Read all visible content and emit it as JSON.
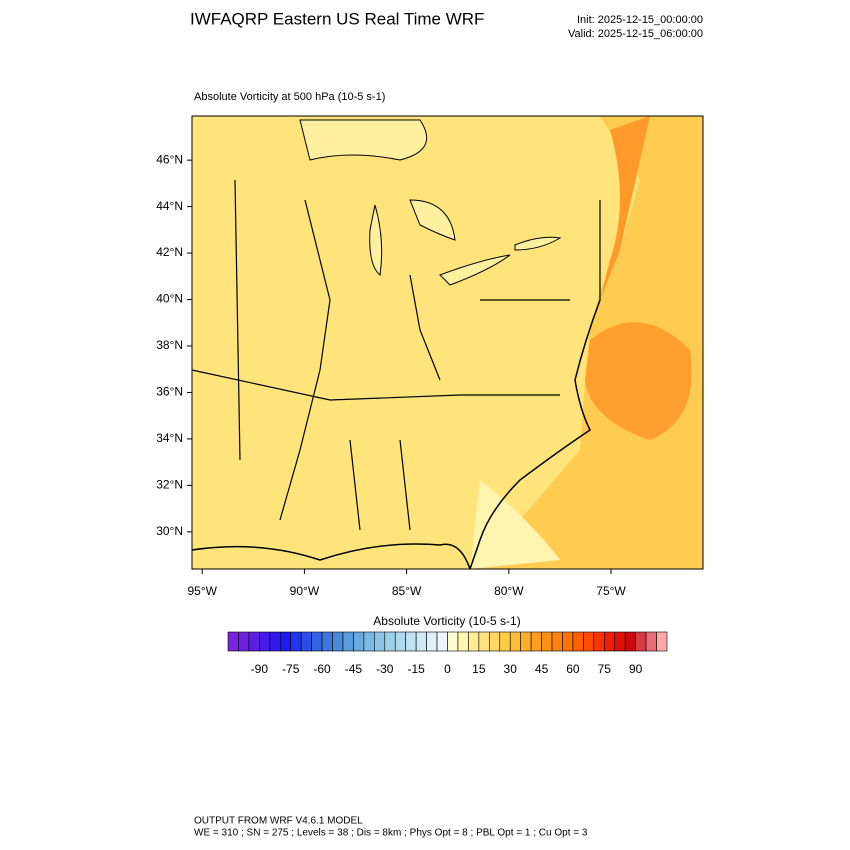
{
  "title": "IWFAQRP Eastern US Real Time WRF",
  "init": "Init: 2025-12-15_00:00:00",
  "valid": "Valid: 2025-12-15_06:00:00",
  "subtitle": "Absolute Vorticity at 500 hPa   (10-5 s-1)",
  "map": {
    "latlim": [
      28.4,
      47.9
    ],
    "lonlim": [
      -95.5,
      -70.5
    ],
    "latticks": [
      {
        "value": 46,
        "label": "46°N"
      },
      {
        "value": 44,
        "label": "44°N"
      },
      {
        "value": 42,
        "label": "42°N"
      },
      {
        "value": 40,
        "label": "40°N"
      },
      {
        "value": 38,
        "label": "38°N"
      },
      {
        "value": 36,
        "label": "36°N"
      },
      {
        "value": 34,
        "label": "34°N"
      },
      {
        "value": 32,
        "label": "32°N"
      },
      {
        "value": 30,
        "label": "30°N"
      }
    ],
    "lonticks": [
      {
        "value": -95,
        "label": "95°W"
      },
      {
        "value": -90,
        "label": "90°W"
      },
      {
        "value": -85,
        "label": "85°W"
      },
      {
        "value": -80,
        "label": "80°W"
      },
      {
        "value": -75,
        "label": "75°W"
      }
    ]
  },
  "colorbar": {
    "title": "Absolute Vorticity  (10-5 s-1)",
    "range": [
      -105,
      105
    ],
    "colors": [
      "#7b22dd",
      "#6b20e0",
      "#5a1ee4",
      "#471ce8",
      "#2f1aec",
      "#1c1cf0",
      "#2236ee",
      "#2b4ee8",
      "#3564e2",
      "#3f78dc",
      "#4a8ad8",
      "#5a9cdc",
      "#6aacdf",
      "#7bbae3",
      "#8cc6e7",
      "#9dd0ea",
      "#afd9ee",
      "#bfe1f1",
      "#cfe9f5",
      "#dff0f8",
      "#eef6fb",
      "#fffbd0",
      "#fff4b0",
      "#ffec94",
      "#ffe37a",
      "#ffd860",
      "#ffcb48",
      "#ffbd36",
      "#ffae28",
      "#ffa01c",
      "#ff9112",
      "#ff820c",
      "#ff7208",
      "#ff6006",
      "#ff4c04",
      "#ff3402",
      "#f01e02",
      "#dc1008",
      "#c80a10",
      "#d83a44",
      "#ec6c74",
      "#ffa8a8"
    ],
    "ticks": [
      -90,
      -75,
      -60,
      -45,
      -30,
      -15,
      0,
      15,
      30,
      45,
      60,
      75,
      90
    ]
  },
  "footer": [
    "OUTPUT FROM WRF V4.6.1 MODEL",
    "WE = 310 ; SN = 275 ; Levels = 38 ; Dis = 8km ; Phys Opt = 8 ; PBL Opt = 1 ; Cu Opt = 3"
  ]
}
